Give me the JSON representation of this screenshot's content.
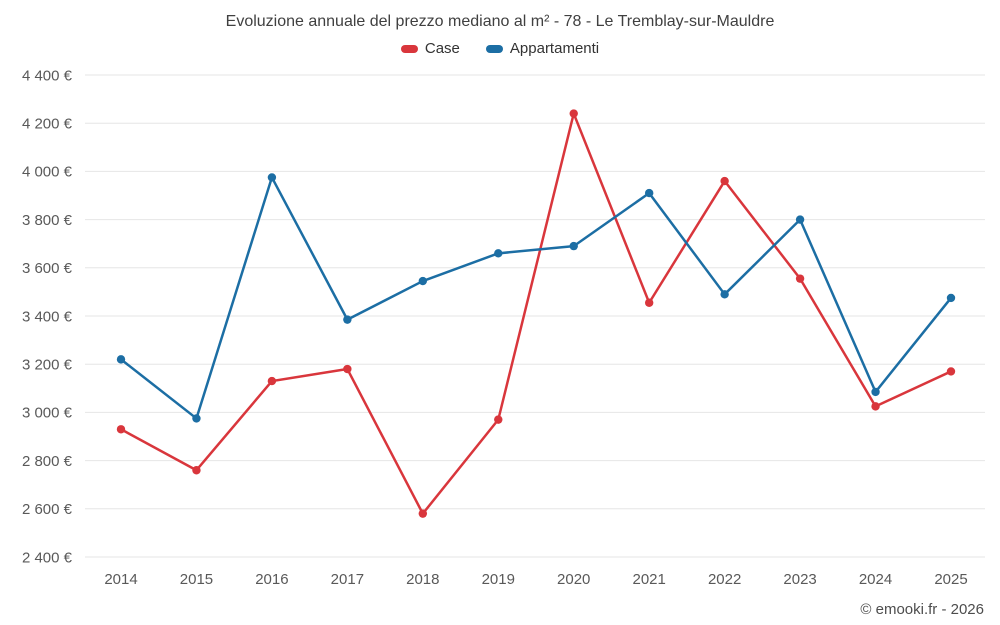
{
  "chart_data": {
    "type": "line",
    "title": "Evoluzione annuale del prezzo mediano al m² - 78 - Le Tremblay-sur-Mauldre",
    "categories": [
      "2014",
      "2015",
      "2016",
      "2017",
      "2018",
      "2019",
      "2020",
      "2021",
      "2022",
      "2023",
      "2024",
      "2025"
    ],
    "series": [
      {
        "name": "Case",
        "color": "#d9363c",
        "values": [
          2930,
          2760,
          3130,
          3180,
          2580,
          2970,
          4240,
          3455,
          3960,
          3555,
          3025,
          3170
        ]
      },
      {
        "name": "Appartamenti",
        "color": "#1c6ea4",
        "values": [
          3220,
          2975,
          3975,
          3385,
          3545,
          3660,
          3690,
          3910,
          3490,
          3800,
          3085,
          3475
        ]
      }
    ],
    "ylim": [
      2400,
      4400
    ],
    "ytick_step": 200,
    "y_tick_format": "{value} €",
    "grid": "horizontal",
    "legend_position": "top",
    "grid_color": "#e6e6e6",
    "marker": "circle"
  },
  "footer": {
    "copyright": "© emooki.fr - 2026"
  }
}
